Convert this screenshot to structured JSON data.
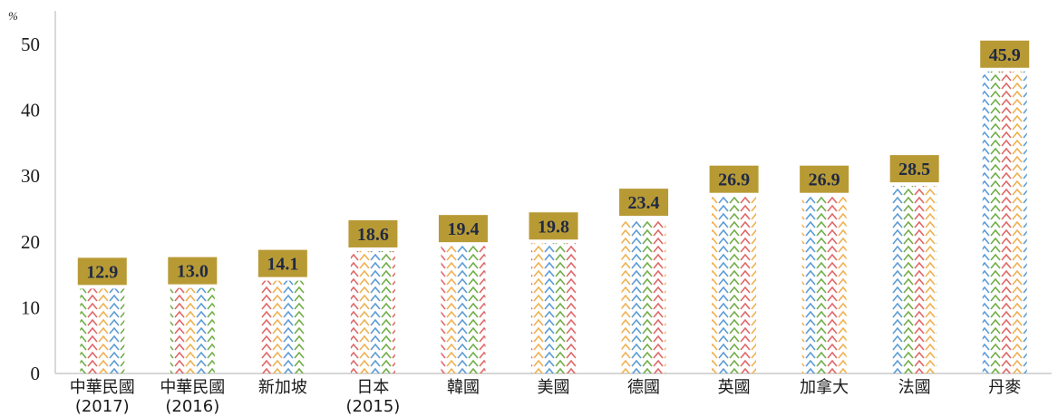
{
  "chart_data": {
    "type": "bar",
    "unit_label": "%",
    "categories": [
      [
        "中華民國",
        "(2017)"
      ],
      [
        "中華民國",
        "(2016)"
      ],
      [
        "新加坡"
      ],
      [
        "日本",
        "(2015)"
      ],
      [
        "韓國"
      ],
      [
        "美國"
      ],
      [
        "德國"
      ],
      [
        "英國"
      ],
      [
        "加拿大"
      ],
      [
        "法國"
      ],
      [
        "丹麥"
      ]
    ],
    "values": [
      12.9,
      13.0,
      14.1,
      18.6,
      19.4,
      19.8,
      23.4,
      26.9,
      26.9,
      28.5,
      45.9
    ],
    "data_labels": [
      "12.9",
      "13.0",
      "14.1",
      "18.6",
      "19.4",
      "19.8",
      "23.4",
      "26.9",
      "26.9",
      "28.5",
      "45.9"
    ],
    "yticks": [
      "0",
      "10",
      "20",
      "30",
      "40",
      "50"
    ],
    "ylim": [
      0,
      50
    ],
    "grid": false,
    "legend": "none",
    "colors": {
      "label_box": "#b89a35",
      "label_text": "#1f2a44",
      "axis": "#bfbfbf",
      "pattern": [
        "#e06666",
        "#f0b050",
        "#5b9bd5",
        "#70ad47"
      ]
    }
  }
}
